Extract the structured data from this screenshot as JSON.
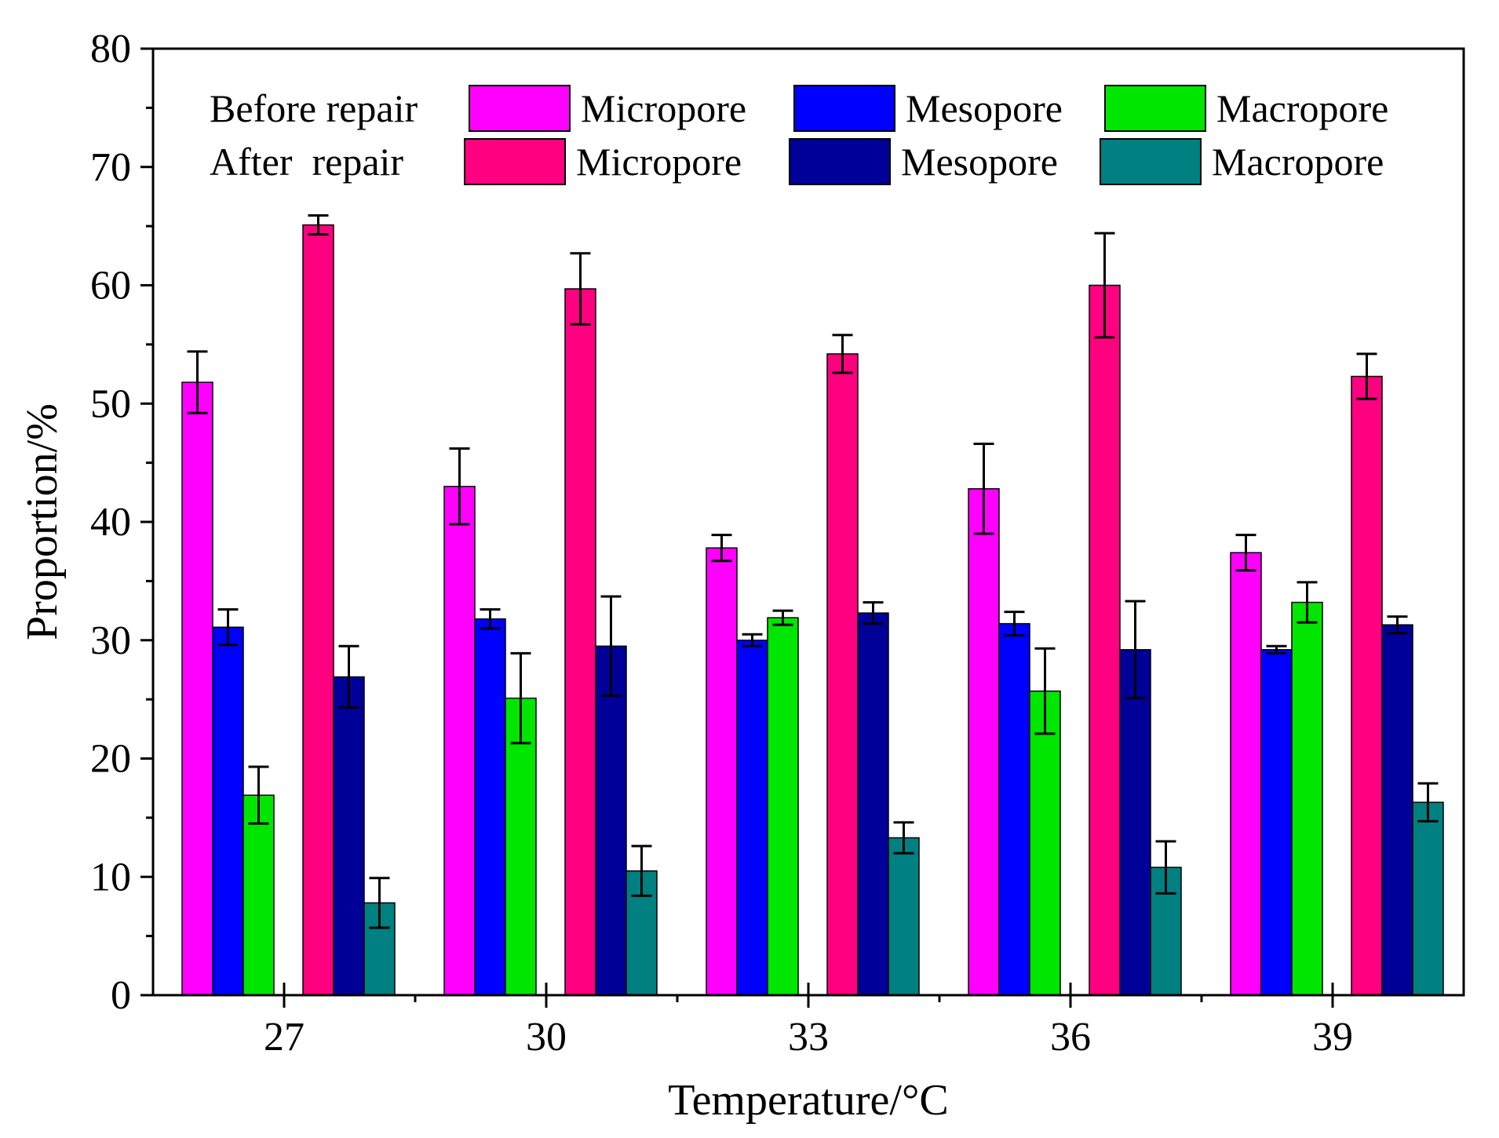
{
  "chart_data": {
    "type": "bar",
    "xlabel": "Temperature/°C",
    "ylabel": "Proportion/%",
    "ylim": [
      0,
      80
    ],
    "yticks": [
      0,
      10,
      20,
      30,
      40,
      50,
      60,
      70,
      80
    ],
    "categories": [
      "27",
      "30",
      "33",
      "36",
      "39"
    ],
    "grid": false,
    "legend": {
      "placement": "top",
      "rows": [
        {
          "label": "Before repair",
          "entries": [
            "Micropore",
            "Mesopore",
            "Macropore"
          ]
        },
        {
          "label": "After  repair",
          "entries": [
            "Micropore",
            "Mesopore",
            "Macropore"
          ]
        }
      ]
    },
    "series": [
      {
        "name": "Micropore",
        "group": "Before repair",
        "color": "#ff00ff",
        "values": [
          51.8,
          43.0,
          37.8,
          42.8,
          37.4
        ],
        "errors": [
          2.6,
          3.2,
          1.1,
          3.8,
          1.5
        ]
      },
      {
        "name": "Mesopore",
        "group": "Before repair",
        "color": "#0000ff",
        "values": [
          31.1,
          31.8,
          30.0,
          31.4,
          29.2
        ],
        "errors": [
          1.5,
          0.8,
          0.5,
          1.0,
          0.3
        ]
      },
      {
        "name": "Macropore",
        "group": "Before repair",
        "color": "#00e600",
        "values": [
          16.9,
          25.1,
          31.9,
          25.7,
          33.2
        ],
        "errors": [
          2.4,
          3.8,
          0.6,
          3.6,
          1.7
        ]
      },
      {
        "name": "Micropore",
        "group": "After  repair",
        "color": "#ff0080",
        "values": [
          65.1,
          59.7,
          54.2,
          60.0,
          52.3
        ],
        "errors": [
          0.8,
          3.0,
          1.6,
          4.4,
          1.9
        ]
      },
      {
        "name": "Mesopore",
        "group": "After  repair",
        "color": "#000099",
        "values": [
          26.9,
          29.5,
          32.3,
          29.2,
          31.3
        ],
        "errors": [
          2.6,
          4.2,
          0.9,
          4.1,
          0.7
        ]
      },
      {
        "name": "Macropore",
        "group": "After  repair",
        "color": "#008080",
        "values": [
          7.8,
          10.5,
          13.3,
          10.8,
          16.3
        ],
        "errors": [
          2.1,
          2.1,
          1.3,
          2.2,
          1.6
        ]
      }
    ]
  }
}
